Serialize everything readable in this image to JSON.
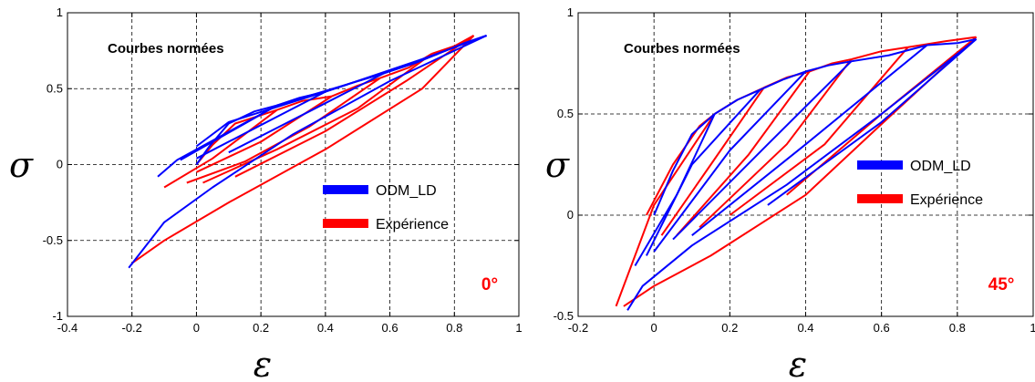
{
  "chart_data": [
    {
      "type": "line",
      "annotation": "Courbes normées",
      "angle_label": "0°",
      "xlabel": "ε",
      "ylabel": "σ",
      "xlim": [
        -0.4,
        1
      ],
      "ylim": [
        -1,
        1
      ],
      "xticks": [
        "-0.4",
        "-0.2",
        "0",
        "0.2",
        "0.4",
        "0.6",
        "0.8",
        "1"
      ],
      "yticks": [
        "-1",
        "-0.5",
        "0",
        "0.5",
        "1"
      ],
      "grid": true,
      "legend_position": "right",
      "colors": {
        "ODM_LD": "#0000ff",
        "Expérience": "#ff0000"
      },
      "series": [
        {
          "name": "ODM_LD",
          "loops": [
            {
              "load": [
                [
                  0,
                  0
                ],
                [
                  0.04,
                  0.12
                ],
                [
                  0.1,
                  0.27
                ],
                [
                  0.18,
                  0.35
                ],
                [
                  0.25,
                  0.39
                ]
              ],
              "unload": [
                [
                  -0.06,
                  0.03
                ],
                [
                  -0.12,
                  -0.08
                ]
              ]
            },
            {
              "load": [
                [
                  0.25,
                  0.39
                ],
                [
                  0.32,
                  0.44
                ],
                [
                  0.4,
                  0.48
                ]
              ],
              "unload": [
                [
                  0.1,
                  0.28
                ],
                [
                  0,
                  0.12
                ]
              ]
            },
            {
              "load": [
                [
                  0.4,
                  0.48
                ],
                [
                  0.5,
                  0.55
                ],
                [
                  0.58,
                  0.6
                ]
              ],
              "unload": [
                [
                  0.25,
                  0.39
                ],
                [
                  0.1,
                  0.21
                ],
                [
                  -0.05,
                  0.03
                ]
              ]
            },
            {
              "load": [
                [
                  0.58,
                  0.6
                ],
                [
                  0.68,
                  0.67
                ],
                [
                  0.75,
                  0.73
                ]
              ],
              "unload": [
                [
                  0.4,
                  0.48
                ],
                [
                  0.2,
                  0.26
                ],
                [
                  0,
                  0.04
                ]
              ]
            },
            {
              "load": [
                [
                  0.75,
                  0.73
                ],
                [
                  0.83,
                  0.8
                ],
                [
                  0.9,
                  0.85
                ]
              ],
              "unload": [
                [
                  0.58,
                  0.6
                ],
                [
                  0.35,
                  0.35
                ],
                [
                  0.1,
                  0.08
                ]
              ]
            }
          ],
          "return": [
            [
              0.9,
              0.85
            ],
            [
              0.6,
              0.55
            ],
            [
              0.3,
              0.2
            ],
            [
              0.05,
              -0.15
            ],
            [
              -0.1,
              -0.38
            ],
            [
              -0.21,
              -0.68
            ]
          ]
        },
        {
          "name": "Expérience",
          "loops": [
            {
              "load": [
                [
                  0,
                  0
                ],
                [
                  0.05,
                  0.13
                ],
                [
                  0.12,
                  0.27
                ],
                [
                  0.25,
                  0.36
                ]
              ],
              "unload": [
                [
                  0.05,
                  0.04
                ],
                [
                  -0.1,
                  -0.15
                ]
              ]
            },
            {
              "load": [
                [
                  0.25,
                  0.36
                ],
                [
                  0.33,
                  0.42
                ],
                [
                  0.42,
                  0.45
                ]
              ],
              "unload": [
                [
                  0.2,
                  0.15
                ],
                [
                  0,
                  -0.05
                ]
              ]
            },
            {
              "load": [
                [
                  0.42,
                  0.45
                ],
                [
                  0.5,
                  0.52
                ],
                [
                  0.57,
                  0.57
                ]
              ],
              "unload": [
                [
                  0.35,
                  0.25
                ],
                [
                  0.15,
                  0.02
                ],
                [
                  -0.03,
                  -0.12
                ]
              ]
            },
            {
              "load": [
                [
                  0.57,
                  0.57
                ],
                [
                  0.66,
                  0.64
                ],
                [
                  0.73,
                  0.73
                ]
              ],
              "unload": [
                [
                  0.5,
                  0.37
                ],
                [
                  0.25,
                  0.1
                ],
                [
                  0.02,
                  -0.12
                ]
              ]
            },
            {
              "load": [
                [
                  0.73,
                  0.73
                ],
                [
                  0.8,
                  0.78
                ],
                [
                  0.86,
                  0.85
                ]
              ],
              "unload": [
                [
                  0.65,
                  0.55
                ],
                [
                  0.4,
                  0.22
                ],
                [
                  0.12,
                  -0.08
                ]
              ]
            }
          ],
          "return": [
            [
              0.86,
              0.85
            ],
            [
              0.7,
              0.5
            ],
            [
              0.4,
              0.1
            ],
            [
              0.1,
              -0.25
            ],
            [
              -0.1,
              -0.5
            ],
            [
              -0.2,
              -0.65
            ]
          ]
        }
      ]
    },
    {
      "type": "line",
      "annotation": "Courbes normées",
      "angle_label": "45°",
      "xlabel": "ε",
      "ylabel": "σ",
      "xlim": [
        -0.2,
        1
      ],
      "ylim": [
        -0.5,
        1
      ],
      "xticks": [
        "-0.2",
        "0",
        "0.2",
        "0.4",
        "0.6",
        "0.8",
        "1"
      ],
      "yticks": [
        "-0.5",
        "0",
        "0.5",
        "1"
      ],
      "grid": true,
      "legend_position": "right",
      "colors": {
        "ODM_LD": "#0000ff",
        "Expérience": "#ff0000"
      },
      "series": [
        {
          "name": "ODM_LD",
          "loops": [
            {
              "load": [
                [
                  0,
                  0
                ],
                [
                  0.05,
                  0.22
                ],
                [
                  0.1,
                  0.4
                ],
                [
                  0.16,
                  0.5
                ]
              ],
              "unload": [
                [
                  0.06,
                  0.1
                ],
                [
                  -0.05,
                  -0.25
                ]
              ]
            },
            {
              "load": [
                [
                  0.16,
                  0.5
                ],
                [
                  0.22,
                  0.57
                ],
                [
                  0.28,
                  0.62
                ]
              ],
              "unload": [
                [
                  0.1,
                  0.25
                ],
                [
                  -0.02,
                  -0.2
                ]
              ]
            },
            {
              "load": [
                [
                  0.28,
                  0.62
                ],
                [
                  0.34,
                  0.67
                ],
                [
                  0.4,
                  0.71
                ]
              ],
              "unload": [
                [
                  0.2,
                  0.32
                ],
                [
                  0,
                  -0.18
                ]
              ]
            },
            {
              "load": [
                [
                  0.4,
                  0.71
                ],
                [
                  0.46,
                  0.74
                ],
                [
                  0.52,
                  0.76
                ]
              ],
              "unload": [
                [
                  0.3,
                  0.35
                ],
                [
                  0.05,
                  -0.12
                ]
              ]
            },
            {
              "load": [
                [
                  0.52,
                  0.76
                ],
                [
                  0.62,
                  0.79
                ],
                [
                  0.72,
                  0.84
                ]
              ],
              "unload": [
                [
                  0.4,
                  0.35
                ],
                [
                  0.1,
                  -0.1
                ]
              ]
            },
            {
              "load": [
                [
                  0.72,
                  0.84
                ],
                [
                  0.8,
                  0.85
                ],
                [
                  0.85,
                  0.87
                ]
              ],
              "unload": [
                [
                  0.6,
                  0.46
                ],
                [
                  0.3,
                  0.05
                ]
              ]
            }
          ],
          "return": [
            [
              0.85,
              0.87
            ],
            [
              0.6,
              0.5
            ],
            [
              0.35,
              0.15
            ],
            [
              0.1,
              -0.15
            ],
            [
              -0.03,
              -0.35
            ],
            [
              -0.07,
              -0.47
            ]
          ]
        },
        {
          "name": "Expérience",
          "loops": [
            {
              "load": [
                [
                  -0.02,
                  0
                ],
                [
                  0.05,
                  0.25
                ],
                [
                  0.12,
                  0.44
                ],
                [
                  0.16,
                  0.5
                ]
              ],
              "unload": [
                [
                  0,
                  0.05
                ],
                [
                  -0.1,
                  -0.45
                ]
              ]
            },
            {
              "load": [
                [
                  0.16,
                  0.5
                ],
                [
                  0.22,
                  0.57
                ],
                [
                  0.29,
                  0.63
                ]
              ],
              "unload": [
                [
                  0.15,
                  0.25
                ],
                [
                  0.02,
                  -0.1
                ]
              ]
            },
            {
              "load": [
                [
                  0.29,
                  0.63
                ],
                [
                  0.35,
                  0.68
                ],
                [
                  0.41,
                  0.71
                ]
              ],
              "unload": [
                [
                  0.25,
                  0.3
                ],
                [
                  0.06,
                  -0.1
                ]
              ]
            },
            {
              "load": [
                [
                  0.41,
                  0.71
                ],
                [
                  0.47,
                  0.75
                ],
                [
                  0.52,
                  0.77
                ]
              ],
              "unload": [
                [
                  0.35,
                  0.35
                ],
                [
                  0.12,
                  -0.06
                ]
              ]
            },
            {
              "load": [
                [
                  0.52,
                  0.77
                ],
                [
                  0.6,
                  0.81
                ],
                [
                  0.67,
                  0.83
                ]
              ],
              "unload": [
                [
                  0.45,
                  0.35
                ],
                [
                  0.2,
                  0.0
                ]
              ]
            },
            {
              "load": [
                [
                  0.67,
                  0.83
                ],
                [
                  0.77,
                  0.86
                ],
                [
                  0.85,
                  0.88
                ]
              ],
              "unload": [
                [
                  0.6,
                  0.5
                ],
                [
                  0.35,
                  0.1
                ]
              ]
            }
          ],
          "return": [
            [
              0.85,
              0.88
            ],
            [
              0.6,
              0.45
            ],
            [
              0.4,
              0.1
            ],
            [
              0.15,
              -0.2
            ],
            [
              0.0,
              -0.35
            ],
            [
              -0.08,
              -0.45
            ]
          ]
        }
      ]
    }
  ]
}
